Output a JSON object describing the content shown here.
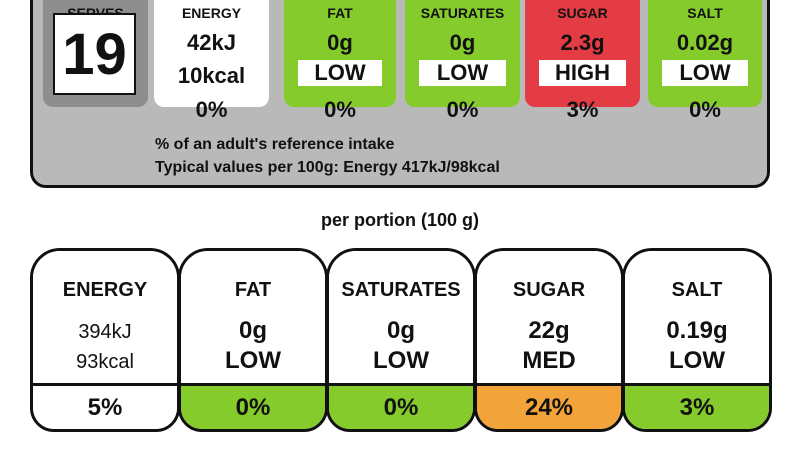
{
  "colors": {
    "low": "#86cb2c",
    "high": "#e33c45",
    "medium": "#f2a43a",
    "panel": "#b9b9b9",
    "serves_tile": "#8e8e8e"
  },
  "top_label": {
    "serves": {
      "heading": "SERVES",
      "value": "19"
    },
    "energy": {
      "heading": "ENERGY",
      "kj": "42kJ",
      "kcal": "10kcal",
      "percent": "0%"
    },
    "fat": {
      "heading": "FAT",
      "amount": "0g",
      "level": "LOW",
      "percent": "0%"
    },
    "saturates": {
      "heading": "SATURATES",
      "amount": "0g",
      "level": "LOW",
      "percent": "0%"
    },
    "sugar": {
      "heading": "SUGAR",
      "amount": "2.3g",
      "level": "HIGH",
      "percent": "3%"
    },
    "salt": {
      "heading": "SALT",
      "amount": "0.02g",
      "level": "LOW",
      "percent": "0%"
    },
    "note_line1": "% of an adult's reference intake",
    "note_line2": "Typical values per 100g:   Energy 417kJ/98kcal"
  },
  "portion_caption": "per portion (100 g)",
  "bottom_label": {
    "energy": {
      "heading": "ENERGY",
      "kj": "394kJ",
      "kcal": "93kcal",
      "percent": "5%"
    },
    "fat": {
      "heading": "FAT",
      "amount": "0g",
      "level": "LOW",
      "percent": "0%"
    },
    "saturates": {
      "heading": "SATURATES",
      "amount": "0g",
      "level": "LOW",
      "percent": "0%"
    },
    "sugar": {
      "heading": "SUGAR",
      "amount": "22g",
      "level": "MED",
      "percent": "24%"
    },
    "salt": {
      "heading": "SALT",
      "amount": "0.19g",
      "level": "LOW",
      "percent": "3%"
    }
  }
}
